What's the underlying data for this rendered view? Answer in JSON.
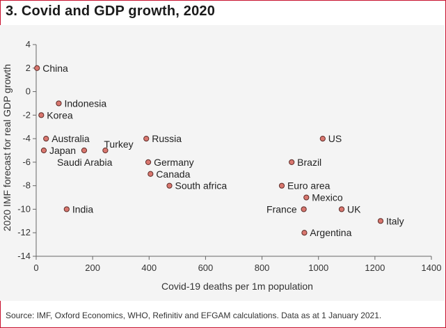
{
  "title": "3. Covid and GDP growth, 2020",
  "source": "Source: IMF, Oxford Economics, WHO, Refinitiv and EFGAM calculations. Data as at 1 January 2021.",
  "colors": {
    "frame": "#c8102e",
    "point_fill": "#d9776f",
    "point_stroke": "#5a2a26",
    "axis": "#666666"
  },
  "chart_data": {
    "type": "scatter",
    "xlabel": "Covid-19 deaths per 1m population",
    "ylabel": "2020 IMF forecast for real GDP growth",
    "xlim": [
      0,
      1400
    ],
    "ylim": [
      -14,
      4
    ],
    "xticks": [
      0,
      200,
      400,
      600,
      800,
      1000,
      1200,
      1400
    ],
    "yticks": [
      4,
      2,
      0,
      -2,
      -4,
      -6,
      -8,
      -10,
      -12,
      -14
    ],
    "grid": false,
    "points": [
      {
        "label": "China",
        "x": 3,
        "y": 2,
        "anchor": "right"
      },
      {
        "label": "Indonesia",
        "x": 80,
        "y": -1,
        "anchor": "right"
      },
      {
        "label": "Korea",
        "x": 18,
        "y": -2,
        "anchor": "right"
      },
      {
        "label": "Australia",
        "x": 35,
        "y": -4,
        "anchor": "right"
      },
      {
        "label": "Japan",
        "x": 27,
        "y": -5,
        "anchor": "right"
      },
      {
        "label": "Saudi Arabia",
        "x": 170,
        "y": -5,
        "anchor": "below"
      },
      {
        "label": "Turkey",
        "x": 245,
        "y": -5,
        "anchor": "above-right"
      },
      {
        "label": "Russia",
        "x": 390,
        "y": -4,
        "anchor": "right"
      },
      {
        "label": "Germany",
        "x": 397,
        "y": -6,
        "anchor": "right"
      },
      {
        "label": "Canada",
        "x": 405,
        "y": -7,
        "anchor": "right"
      },
      {
        "label": "South africa",
        "x": 472,
        "y": -8,
        "anchor": "right"
      },
      {
        "label": "India",
        "x": 108,
        "y": -10,
        "anchor": "right"
      },
      {
        "label": "US",
        "x": 1015,
        "y": -4,
        "anchor": "right"
      },
      {
        "label": "Brazil",
        "x": 905,
        "y": -6,
        "anchor": "right"
      },
      {
        "label": "Euro area",
        "x": 870,
        "y": -8,
        "anchor": "right"
      },
      {
        "label": "Mexico",
        "x": 957,
        "y": -9,
        "anchor": "right"
      },
      {
        "label": "France",
        "x": 948,
        "y": -10,
        "anchor": "left"
      },
      {
        "label": "UK",
        "x": 1082,
        "y": -10,
        "anchor": "right"
      },
      {
        "label": "Argentina",
        "x": 950,
        "y": -12,
        "anchor": "right"
      },
      {
        "label": "Italy",
        "x": 1220,
        "y": -11,
        "anchor": "right"
      }
    ]
  }
}
